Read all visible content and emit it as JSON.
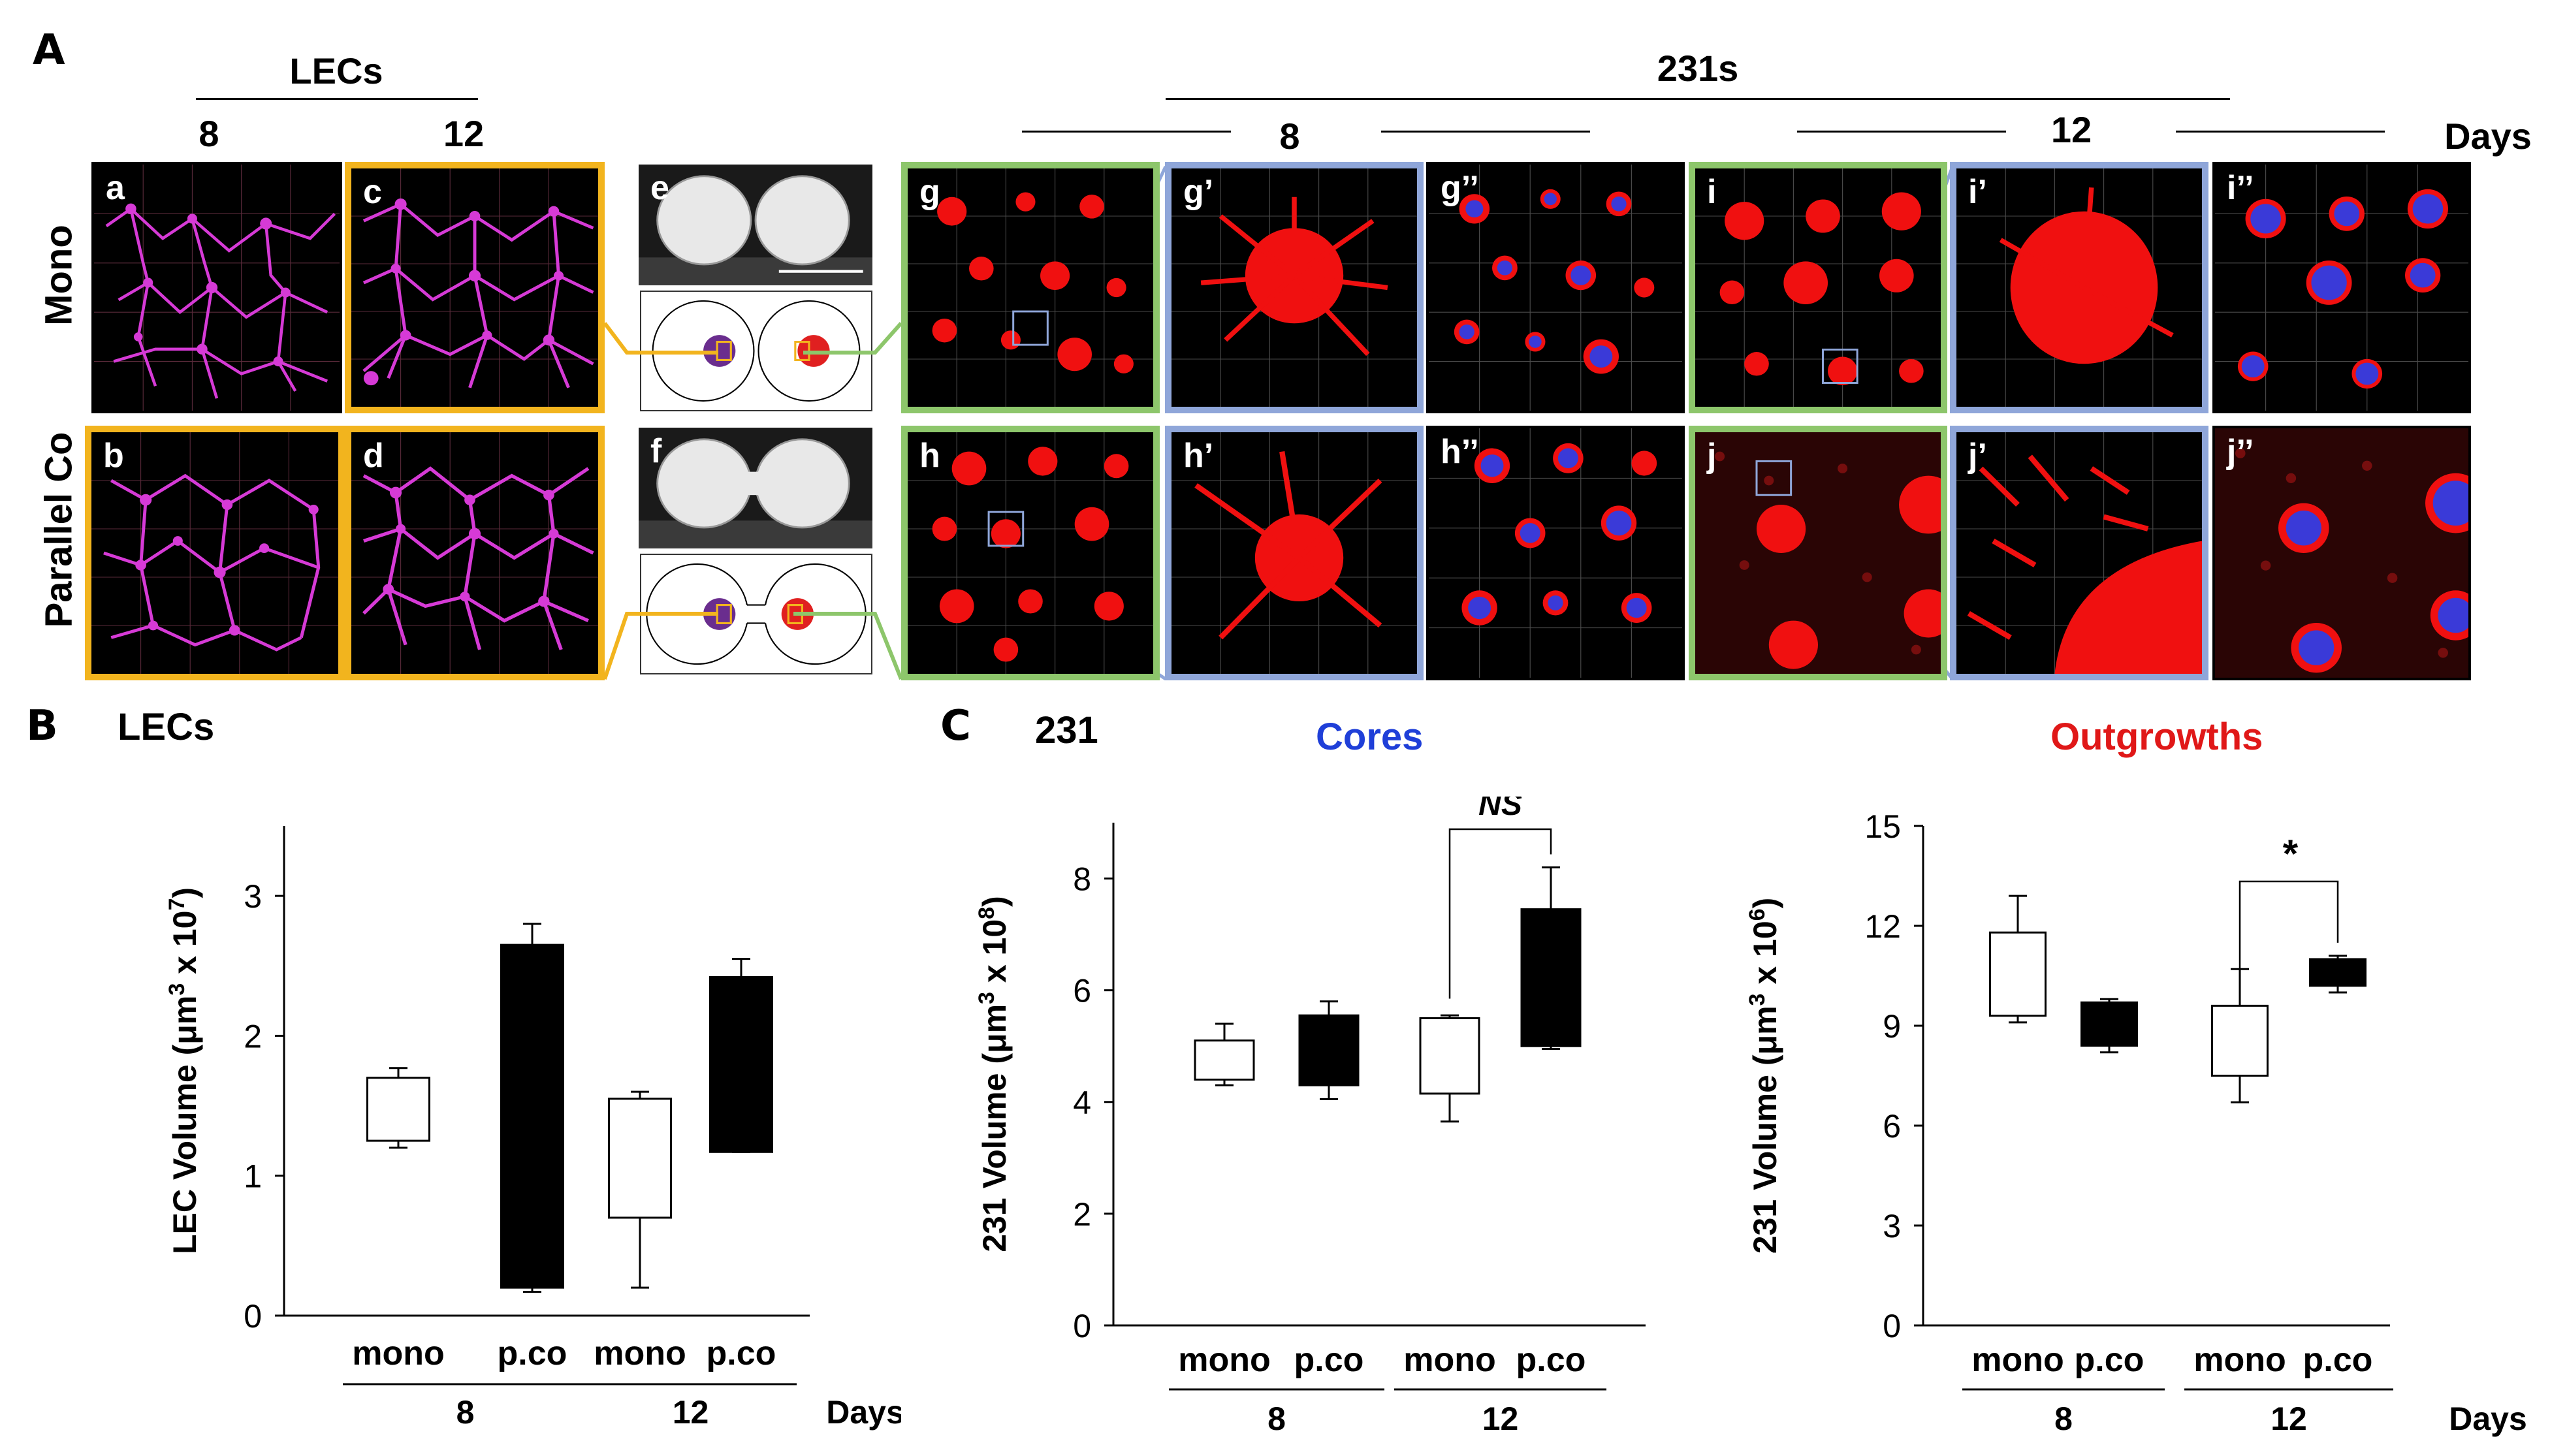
{
  "figure": {
    "panel_A": {
      "letter": "A",
      "lec_header": "LECs",
      "cell231_header": "231s",
      "day8": "8",
      "day12": "12",
      "days_label": "Days",
      "row_mono": "Mono",
      "row_parallel": "Parallel Co",
      "tiles": {
        "a": "a",
        "b": "b",
        "c": "c",
        "d": "d",
        "e": "e",
        "f": "f",
        "g": "g",
        "g1": "g’",
        "g2": "g’’",
        "i": "i",
        "i1": "i’",
        "i2": "i’’",
        "h": "h",
        "h1": "h’",
        "h2": "h’’",
        "j": "j",
        "j1": "j’",
        "j2": "j’’"
      },
      "colors": {
        "lec": "#D63AD6",
        "tumor": "#F01010",
        "core": "#3A3AD8",
        "frame_lec": "#F2B41E",
        "frame_231": "#8DC66B",
        "frame_zoom": "#8FA6D9"
      }
    },
    "panel_B": {
      "letter": "B",
      "title": "LECs"
    },
    "panel_C": {
      "letter": "C",
      "title": "231",
      "cores_title": "Cores",
      "outgrowths_title": "Outgrowths",
      "cores_color": "#1F3FD8",
      "outgrowths_color": "#E01818"
    }
  },
  "chart_data": [
    {
      "type": "box",
      "panel": "B",
      "ylabel_main": "LEC Volume (μm",
      "ylabel_sup": "3",
      "ylabel_mid": " x 10",
      "ylabel_sup2": "7",
      "ylabel_end": ")",
      "ylim": [
        0,
        3.5
      ],
      "yticks": [
        "0",
        "1",
        "2",
        "3"
      ],
      "ytick_values": [
        0,
        1,
        2,
        3
      ],
      "categories": [
        "mono",
        "p.co",
        "mono",
        "p.co"
      ],
      "groups": [
        "8",
        "12"
      ],
      "days_label": "Days",
      "boxes": [
        {
          "fill": "white",
          "min": 1.2,
          "q1": 1.25,
          "q3": 1.7,
          "max": 1.77
        },
        {
          "fill": "black",
          "min": 0.17,
          "q1": 0.2,
          "q3": 2.65,
          "max": 2.8
        },
        {
          "fill": "white",
          "min": 0.2,
          "q1": 0.7,
          "q3": 1.55,
          "max": 1.6
        },
        {
          "fill": "black",
          "min": 1.17,
          "q1": 1.17,
          "q3": 2.42,
          "max": 2.55
        }
      ]
    },
    {
      "type": "box",
      "panel": "C-cores",
      "ylabel_main": "231 Volume (μm",
      "ylabel_sup": "3",
      "ylabel_mid": " x 10",
      "ylabel_sup2": "8",
      "ylabel_end": ")",
      "ylim": [
        0,
        9
      ],
      "yticks": [
        "0",
        "2",
        "4",
        "6",
        "8"
      ],
      "ytick_values": [
        0,
        2,
        4,
        6,
        8
      ],
      "categories": [
        "mono",
        "p.co",
        "mono",
        "p.co"
      ],
      "groups": [
        "8",
        "12"
      ],
      "annotation": "NS",
      "boxes": [
        {
          "fill": "white",
          "min": 4.3,
          "q1": 4.4,
          "q3": 5.1,
          "max": 5.4
        },
        {
          "fill": "black",
          "min": 4.05,
          "q1": 4.3,
          "q3": 5.55,
          "max": 5.8
        },
        {
          "fill": "white",
          "min": 3.65,
          "q1": 4.15,
          "q3": 5.5,
          "max": 5.55
        },
        {
          "fill": "black",
          "min": 4.95,
          "q1": 5.0,
          "q3": 7.45,
          "max": 8.2
        }
      ]
    },
    {
      "type": "box",
      "panel": "C-outgrowths",
      "ylabel_main": "231 Volume  (μm",
      "ylabel_sup": "3",
      "ylabel_mid": " x 10",
      "ylabel_sup2": "6",
      "ylabel_end": ")",
      "ylim": [
        0,
        15
      ],
      "yticks": [
        "0",
        "3",
        "6",
        "9",
        "12",
        "15"
      ],
      "ytick_values": [
        0,
        3,
        6,
        9,
        12,
        15
      ],
      "categories": [
        "mono",
        "p.co",
        "mono",
        "p.co"
      ],
      "groups": [
        "8",
        "12"
      ],
      "days_label": "Days",
      "annotation": "*",
      "boxes": [
        {
          "fill": "white",
          "min": 9.1,
          "q1": 9.3,
          "q3": 11.8,
          "max": 12.9
        },
        {
          "fill": "black",
          "min": 8.2,
          "q1": 8.4,
          "q3": 9.7,
          "max": 9.8
        },
        {
          "fill": "white",
          "min": 6.7,
          "q1": 7.5,
          "q3": 9.6,
          "max": 10.7
        },
        {
          "fill": "black",
          "min": 10.0,
          "q1": 10.2,
          "q3": 11.0,
          "max": 11.1
        }
      ]
    }
  ]
}
